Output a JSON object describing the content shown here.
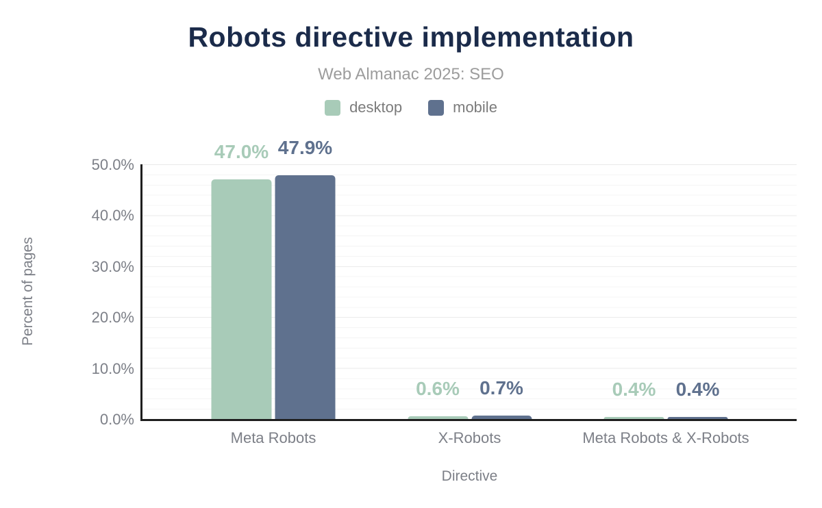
{
  "header": {
    "title": "Robots directive implementation",
    "subtitle": "Web Almanac 2025: SEO"
  },
  "legend": {
    "items": [
      {
        "label": "desktop",
        "color": "#a8cbb8"
      },
      {
        "label": "mobile",
        "color": "#5f718e"
      }
    ]
  },
  "colors": {
    "title": "#1b2b4a",
    "subtitle": "#9c9c9c",
    "legend_text": "#7b7b7b",
    "axis_text": "#7c7f87",
    "axis_line": "#1e1e1e",
    "grid_minor": "#f4f4f4",
    "grid_major": "#eaeaea",
    "desktop": "#a8cbb8",
    "mobile": "#5f718e"
  },
  "chart_data": {
    "type": "bar",
    "title": "Robots directive implementation",
    "subtitle": "Web Almanac 2025: SEO",
    "categories": [
      "Meta Robots",
      "X-Robots",
      "Meta Robots & X-Robots"
    ],
    "series": [
      {
        "name": "desktop",
        "color": "#a8cbb8",
        "values": [
          47.0,
          0.6,
          0.4
        ],
        "value_labels": [
          "47.0%",
          "0.6%",
          "0.4%"
        ]
      },
      {
        "name": "mobile",
        "color": "#5f718e",
        "values": [
          47.9,
          0.7,
          0.4
        ],
        "value_labels": [
          "47.9%",
          "0.7%",
          "0.4%"
        ]
      }
    ],
    "xlabel": "Directive",
    "ylabel": "Percent of pages",
    "ylim": [
      0,
      50
    ],
    "ytick_labels": [
      "0.0%",
      "10.0%",
      "20.0%",
      "30.0%",
      "40.0%",
      "50.0%"
    ],
    "grid": "horizontal; major every 10%, minor every 2%",
    "legend_position": "top-center",
    "group_centers_pct": [
      20,
      50,
      80
    ]
  }
}
